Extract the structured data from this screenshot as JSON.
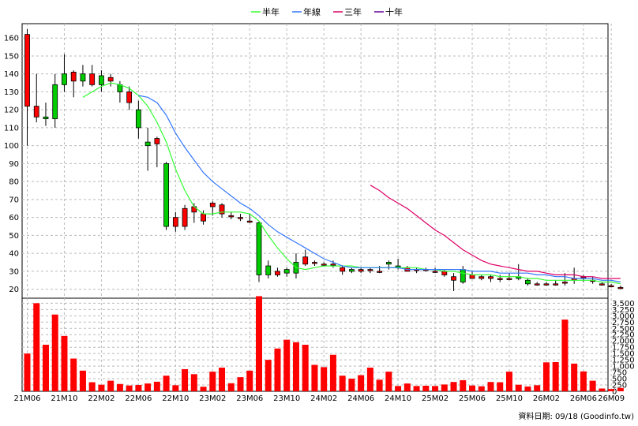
{
  "chart_data": {
    "type": "candlestick",
    "legend": [
      {
        "name": "半年",
        "color": "#33ff33"
      },
      {
        "name": "年線",
        "color": "#3377ff"
      },
      {
        "name": "三年",
        "color": "#dd0066"
      },
      {
        "name": "十年",
        "color": "#660099"
      }
    ],
    "price_axis": {
      "ylim": [
        15,
        168
      ],
      "ticks": [
        20,
        30,
        40,
        50,
        60,
        70,
        80,
        90,
        100,
        110,
        120,
        130,
        140,
        150,
        160
      ]
    },
    "volume_axis": {
      "ylim": [
        0,
        3700
      ],
      "ticks": [
        0,
        250,
        500,
        750,
        1000,
        1250,
        1500,
        1750,
        2000,
        2250,
        2500,
        2750,
        3000,
        3250,
        3500
      ],
      "tick_labels": [
        "0",
        "250",
        "500",
        "750",
        "1,000",
        "1,250",
        "1,500",
        "1,750",
        "2,000",
        "2,250",
        "2,500",
        "2,750",
        "3,000",
        "3,250",
        "3,500"
      ]
    },
    "x_labels": [
      {
        "label": "21M06",
        "index": 0
      },
      {
        "label": "21M10",
        "index": 4
      },
      {
        "label": "22M02",
        "index": 8
      },
      {
        "label": "22M06",
        "index": 12
      },
      {
        "label": "22M10",
        "index": 16
      },
      {
        "label": "23M02",
        "index": 20
      },
      {
        "label": "23M06",
        "index": 24
      },
      {
        "label": "23M10",
        "index": 28
      },
      {
        "label": "24M02",
        "index": 32
      },
      {
        "label": "24M06",
        "index": 36
      },
      {
        "label": "24M10",
        "index": 40
      },
      {
        "label": "25M02",
        "index": 44
      },
      {
        "label": "25M06",
        "index": 48
      },
      {
        "label": "25M10",
        "index": 52
      },
      {
        "label": "26M02",
        "index": 56
      },
      {
        "label": "26M06",
        "index": 60
      },
      {
        "label": "26M09",
        "index": 63
      }
    ],
    "candles": [
      [
        122,
        162,
        165,
        100
      ],
      [
        116,
        122,
        140,
        113
      ],
      [
        116,
        115,
        124,
        111
      ],
      [
        134,
        115,
        140,
        110
      ],
      [
        140,
        134,
        151,
        130
      ],
      [
        136,
        141,
        142,
        127
      ],
      [
        140,
        136,
        145,
        133
      ],
      [
        134,
        140,
        145,
        133
      ],
      [
        139,
        134,
        142,
        130
      ],
      [
        136,
        138,
        140,
        133
      ],
      [
        134,
        130,
        136,
        124
      ],
      [
        124,
        130,
        133,
        120
      ],
      [
        120,
        110,
        125,
        104
      ],
      [
        102,
        100,
        110,
        86
      ],
      [
        101,
        104,
        105,
        88
      ],
      [
        90,
        55,
        91,
        53
      ],
      [
        55,
        60,
        63,
        52
      ],
      [
        55,
        65,
        67,
        53
      ],
      [
        63,
        66,
        68,
        57
      ],
      [
        58,
        62,
        64,
        56
      ],
      [
        66,
        68,
        69,
        61
      ],
      [
        62,
        67,
        68,
        60
      ],
      [
        61,
        61,
        63,
        59
      ],
      [
        60,
        60,
        62,
        58
      ],
      [
        58,
        58,
        62,
        57
      ],
      [
        57,
        28,
        58,
        24
      ],
      [
        33,
        28,
        36,
        26
      ],
      [
        28,
        30,
        32,
        27
      ],
      [
        31,
        29,
        32,
        27
      ],
      [
        35,
        29,
        40,
        26
      ],
      [
        34,
        38,
        42,
        33
      ],
      [
        35,
        35,
        36,
        33
      ],
      [
        34,
        34,
        35,
        33
      ],
      [
        34,
        34,
        36,
        32
      ],
      [
        30,
        32,
        33,
        28
      ],
      [
        31,
        30,
        32,
        29
      ],
      [
        30,
        31,
        32,
        29
      ],
      [
        31,
        31,
        32,
        29
      ],
      [
        30,
        30,
        33,
        29
      ],
      [
        35,
        34,
        36,
        31
      ],
      [
        33,
        32,
        37,
        31
      ],
      [
        30,
        32,
        33,
        30
      ],
      [
        31,
        31,
        32,
        29
      ],
      [
        31,
        31,
        32,
        30
      ],
      [
        30,
        30,
        32,
        29
      ],
      [
        28,
        30,
        31,
        27
      ],
      [
        25,
        27,
        29,
        19
      ],
      [
        31,
        24,
        33,
        23
      ],
      [
        26,
        28,
        30,
        26
      ],
      [
        26,
        27,
        28,
        25
      ],
      [
        26,
        27,
        28,
        24
      ],
      [
        26,
        26,
        28,
        24
      ],
      [
        26,
        26,
        29,
        25
      ],
      [
        27,
        26,
        34,
        25
      ],
      [
        25,
        23,
        26,
        22
      ],
      [
        23,
        23,
        24,
        22
      ],
      [
        23,
        23,
        24,
        22
      ],
      [
        23,
        23,
        25,
        22
      ],
      [
        24,
        24,
        29,
        22
      ],
      [
        25,
        26,
        32,
        23
      ],
      [
        27,
        27,
        28,
        24
      ],
      [
        25,
        25,
        27,
        23
      ],
      [
        23,
        23,
        24,
        22
      ],
      [
        22,
        22,
        23,
        21
      ],
      [
        21,
        21,
        22,
        20
      ]
    ],
    "ma_half_year": [
      null,
      null,
      null,
      null,
      null,
      null,
      127,
      130,
      133,
      135,
      134,
      132,
      128,
      122,
      113,
      102,
      87,
      75,
      66,
      62,
      62,
      63,
      63,
      63,
      62,
      58,
      50,
      43,
      37,
      32,
      31,
      32,
      33,
      33,
      33,
      33,
      32,
      32,
      32,
      32,
      32,
      32,
      32,
      31,
      31,
      30,
      30,
      29,
      28,
      28,
      28,
      27,
      27,
      27,
      26,
      26,
      25,
      25,
      25,
      25,
      25,
      25,
      24,
      24,
      23
    ],
    "ma_year": [
      null,
      null,
      null,
      null,
      null,
      null,
      null,
      null,
      null,
      null,
      null,
      null,
      128,
      127,
      124,
      117,
      107,
      99,
      92,
      85,
      80,
      76,
      72,
      68,
      65,
      61,
      56,
      52,
      49,
      46,
      43,
      40,
      37,
      35,
      33,
      32,
      32,
      32,
      32,
      32,
      32,
      31,
      31,
      31,
      31,
      31,
      31,
      31,
      30,
      30,
      30,
      29,
      29,
      29,
      29,
      28,
      28,
      27,
      27,
      26,
      26,
      26,
      25,
      25,
      24
    ],
    "ma_three_year": [
      null,
      null,
      null,
      null,
      null,
      null,
      null,
      null,
      null,
      null,
      null,
      null,
      null,
      null,
      null,
      null,
      null,
      null,
      null,
      null,
      null,
      null,
      null,
      null,
      null,
      null,
      null,
      null,
      null,
      null,
      null,
      null,
      null,
      null,
      null,
      null,
      null,
      78,
      75,
      71,
      68,
      65,
      61,
      57,
      53,
      50,
      46,
      42,
      39,
      36,
      34,
      33,
      32,
      31,
      30,
      30,
      29,
      28,
      28,
      28,
      27,
      27,
      26,
      26,
      26
    ],
    "volumes": [
      1500,
      3500,
      1850,
      3050,
      2200,
      1300,
      820,
      360,
      260,
      420,
      290,
      230,
      250,
      310,
      380,
      620,
      240,
      880,
      680,
      180,
      780,
      940,
      320,
      560,
      820,
      3780,
      1250,
      1700,
      2050,
      1950,
      1850,
      1050,
      960,
      1450,
      620,
      500,
      640,
      940,
      460,
      780,
      210,
      310,
      210,
      220,
      210,
      270,
      370,
      440,
      230,
      200,
      370,
      360,
      780,
      260,
      190,
      240,
      1150,
      1160,
      2850,
      1100,
      790,
      420,
      110,
      90,
      130
    ]
  },
  "credit": "資料日期: 09/18  (Goodinfo.tw)"
}
